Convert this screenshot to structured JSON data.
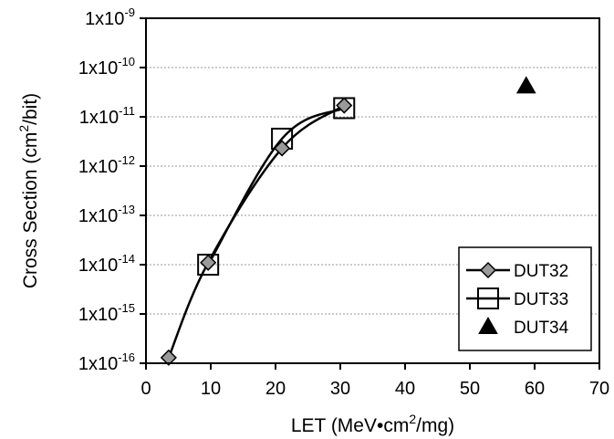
{
  "chart_data": {
    "type": "line",
    "title": "",
    "xlabel": {
      "main": "LET (MeV•cm",
      "sup": "2",
      "rest": "/mg)"
    },
    "ylabel": {
      "main": "Cross Section (cm",
      "sup": "2",
      "rest": "/bit)"
    },
    "xlim": [
      0,
      70
    ],
    "ylim_exp": [
      -16,
      -9
    ],
    "y_scale": "log",
    "x_ticks": [
      0,
      10,
      20,
      30,
      40,
      50,
      60,
      70
    ],
    "y_ticks": [
      {
        "exp": -9,
        "base": "1x10",
        "sup": "-9"
      },
      {
        "exp": -10,
        "base": "1x10",
        "sup": "-10"
      },
      {
        "exp": -11,
        "base": "1x10",
        "sup": "-11"
      },
      {
        "exp": -12,
        "base": "1x10",
        "sup": "-12"
      },
      {
        "exp": -13,
        "base": "1x10",
        "sup": "-13"
      },
      {
        "exp": -14,
        "base": "1x10",
        "sup": "-14"
      },
      {
        "exp": -15,
        "base": "1x10",
        "sup": "-15"
      },
      {
        "exp": -16,
        "base": "1x10",
        "sup": "-16"
      }
    ],
    "grid": "horizontal",
    "legend_position": "bottom-right",
    "series": [
      {
        "name": "DUT32",
        "marker": "diamond",
        "points": [
          {
            "x": 3.5,
            "y": 1.3e-16
          },
          {
            "x": 9.6,
            "y": 1.1e-14
          },
          {
            "x": 21.0,
            "y": 2.3e-12
          },
          {
            "x": 30.6,
            "y": 1.7e-11
          }
        ]
      },
      {
        "name": "DUT33",
        "marker": "square",
        "points": [
          {
            "x": 9.6,
            "y": 1e-14
          },
          {
            "x": 21.0,
            "y": 3.6e-12
          },
          {
            "x": 30.6,
            "y": 1.5e-11
          }
        ]
      },
      {
        "name": "DUT34",
        "marker": "triangle",
        "points": [
          {
            "x": 58.7,
            "y": 4.2e-11
          }
        ]
      }
    ]
  }
}
